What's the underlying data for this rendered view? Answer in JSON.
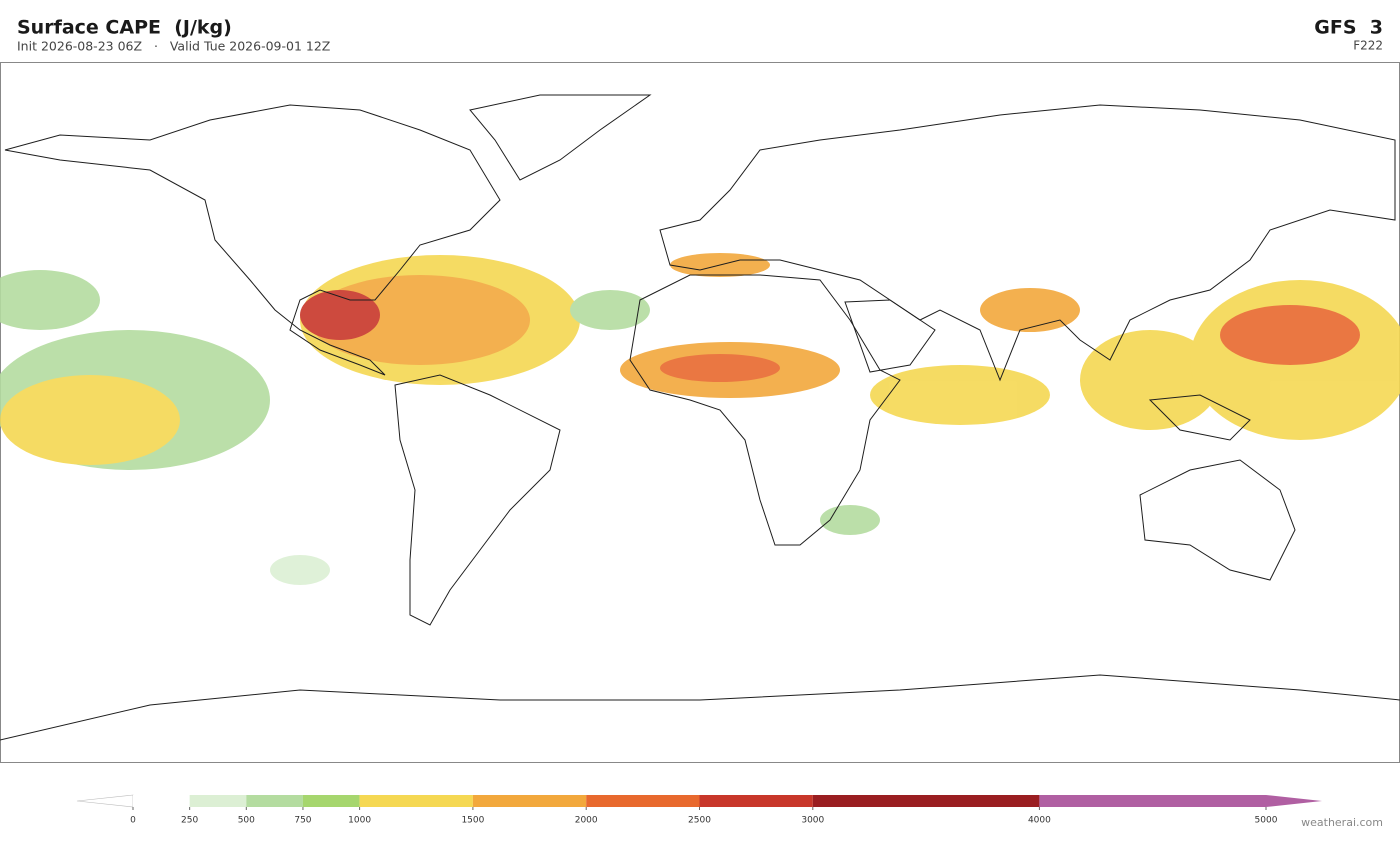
{
  "header": {
    "title": "Surface CAPE  (J/kg)",
    "subtitle": "Init 2026-08-23 06Z   ·   Valid Tue 2026-09-01 12Z",
    "model": "GFS  3",
    "forecast_hour": "F222"
  },
  "colorbar": {
    "levels": [
      0,
      250,
      500,
      750,
      1000,
      1500,
      2000,
      2500,
      3000,
      4000,
      5000
    ],
    "colors": [
      "#ffffff",
      "#dcefd4",
      "#b4dca0",
      "#a6d66e",
      "#f5d853",
      "#f2a83c",
      "#e8692e",
      "#c8372a",
      "#9a1e21",
      "#b05fa2"
    ],
    "under_color": "#ffffff",
    "over_color": "#b05fa2"
  },
  "footer": "weatherai.com"
}
